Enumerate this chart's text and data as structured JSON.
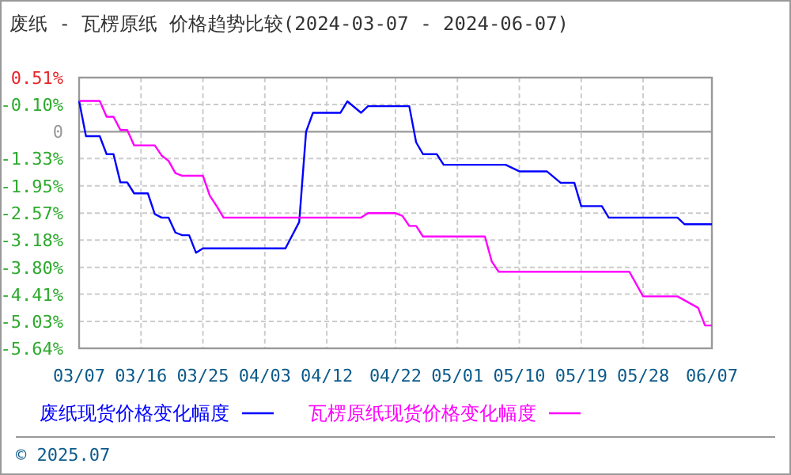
{
  "chart_data": {
    "type": "line",
    "title": "废纸 - 瓦楞原纸 价格趋势比较(2024-03-07 - 2024-06-07)",
    "xlim": [
      "2024-03-07",
      "2024-06-07"
    ],
    "xticks": [
      {
        "value": "2024-03-07",
        "label": "03/07"
      },
      {
        "value": "2024-03-16",
        "label": "03/16"
      },
      {
        "value": "2024-03-25",
        "label": "03/25"
      },
      {
        "value": "2024-04-03",
        "label": "04/03"
      },
      {
        "value": "2024-04-12",
        "label": "04/12"
      },
      {
        "value": "2024-04-22",
        "label": "04/22"
      },
      {
        "value": "2024-05-01",
        "label": "05/01"
      },
      {
        "value": "2024-05-10",
        "label": "05/10"
      },
      {
        "value": "2024-05-19",
        "label": "05/19"
      },
      {
        "value": "2024-05-28",
        "label": "05/28"
      },
      {
        "value": "2024-06-07",
        "label": "06/07"
      }
    ],
    "ylim": [
      -5.64,
      0.51
    ],
    "yticks": [
      {
        "value": 0.51,
        "label": "0.51%"
      },
      {
        "value": -0.1,
        "label": "-0.10%"
      },
      {
        "value": -1.33,
        "label": "-1.33%"
      },
      {
        "value": -1.95,
        "label": "-1.95%"
      },
      {
        "value": -2.57,
        "label": "-2.57%"
      },
      {
        "value": -3.18,
        "label": "-3.18%"
      },
      {
        "value": -3.8,
        "label": "-3.80%"
      },
      {
        "value": -4.41,
        "label": "-4.41%"
      },
      {
        "value": -5.03,
        "label": "-5.03%"
      },
      {
        "value": -5.64,
        "label": "-5.64%"
      }
    ],
    "ref_lines": [
      {
        "axis": "y",
        "value": -0.72,
        "color": "#999999",
        "line_style": "solid"
      }
    ],
    "grid": true,
    "legend": "bottom",
    "line_style": "solid",
    "marker": "none",
    "series": [
      {
        "name": "废纸现货价格变化幅度",
        "color": "#0000ff",
        "x": [
          "2024-03-07",
          "2024-03-08",
          "2024-03-10",
          "2024-03-11",
          "2024-03-12",
          "2024-03-13",
          "2024-03-14",
          "2024-03-15",
          "2024-03-17",
          "2024-03-18",
          "2024-03-19",
          "2024-03-20",
          "2024-03-21",
          "2024-03-22",
          "2024-03-23",
          "2024-03-24",
          "2024-03-25",
          "2024-04-06",
          "2024-04-08",
          "2024-04-09",
          "2024-04-10",
          "2024-04-14",
          "2024-04-15",
          "2024-04-17",
          "2024-04-18",
          "2024-04-24",
          "2024-04-25",
          "2024-04-26",
          "2024-04-28",
          "2024-04-29",
          "2024-05-08",
          "2024-05-10",
          "2024-05-14",
          "2024-05-16",
          "2024-05-18",
          "2024-05-19",
          "2024-05-22",
          "2024-05-23",
          "2024-06-02",
          "2024-06-03",
          "2024-06-07"
        ],
        "values": [
          -0.02,
          -0.82,
          -0.82,
          -1.23,
          -1.23,
          -1.87,
          -1.87,
          -2.12,
          -2.12,
          -2.59,
          -2.67,
          -2.67,
          -3.01,
          -3.07,
          -3.07,
          -3.47,
          -3.37,
          -3.37,
          -2.77,
          -0.72,
          -0.29,
          -0.29,
          -0.03,
          -0.29,
          -0.14,
          -0.14,
          -0.96,
          -1.23,
          -1.23,
          -1.47,
          -1.47,
          -1.62,
          -1.62,
          -1.88,
          -1.88,
          -2.41,
          -2.41,
          -2.67,
          -2.67,
          -2.82,
          -2.82
        ]
      },
      {
        "name": "瓦楞原纸现货价格变化幅度",
        "color": "#ff00ff",
        "x": [
          "2024-03-07",
          "2024-03-10",
          "2024-03-11",
          "2024-03-12",
          "2024-03-13",
          "2024-03-14",
          "2024-03-15",
          "2024-03-18",
          "2024-03-19",
          "2024-03-20",
          "2024-03-21",
          "2024-03-22",
          "2024-03-25",
          "2024-03-26",
          "2024-03-27",
          "2024-03-28",
          "2024-04-17",
          "2024-04-18",
          "2024-04-22",
          "2024-04-23",
          "2024-04-24",
          "2024-04-25",
          "2024-04-26",
          "2024-05-05",
          "2024-05-06",
          "2024-05-07",
          "2024-05-26",
          "2024-05-28",
          "2024-06-02",
          "2024-06-05",
          "2024-06-06",
          "2024-06-07"
        ],
        "values": [
          -0.02,
          -0.02,
          -0.38,
          -0.38,
          -0.68,
          -0.68,
          -1.03,
          -1.03,
          -1.26,
          -1.38,
          -1.66,
          -1.72,
          -1.72,
          -2.17,
          -2.41,
          -2.67,
          -2.67,
          -2.57,
          -2.57,
          -2.63,
          -2.86,
          -2.86,
          -3.1,
          -3.1,
          -3.67,
          -3.9,
          -3.9,
          -4.46,
          -4.46,
          -4.72,
          -5.12,
          -5.12
        ]
      }
    ],
    "annotations": [
      "0",
      "© 2025.07"
    ]
  }
}
